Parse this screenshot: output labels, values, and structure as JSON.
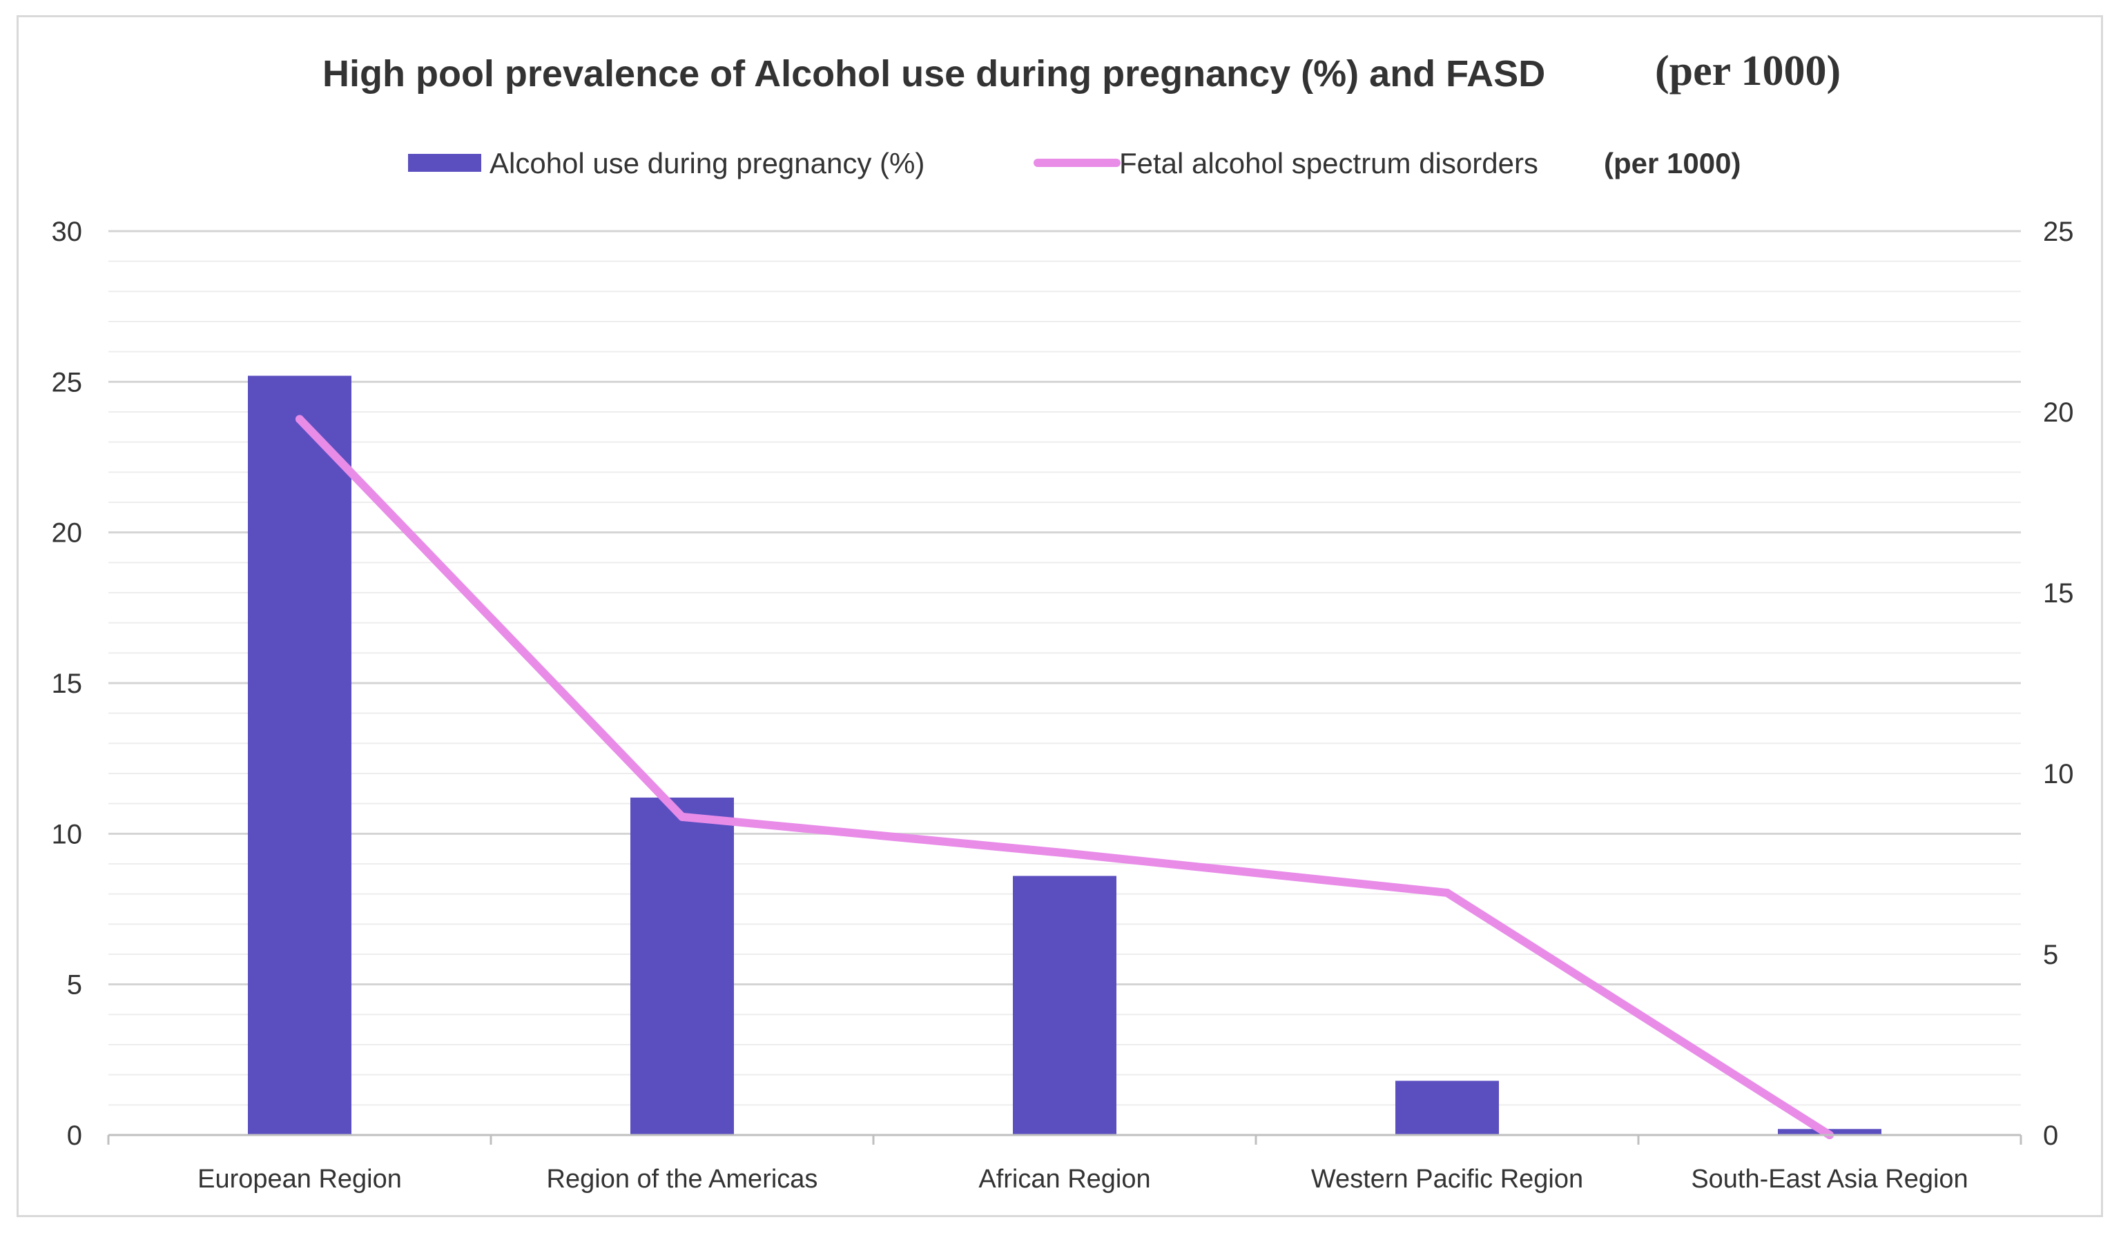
{
  "chart_data": {
    "type": "bar",
    "title": "High pool prevalence of Alcohol use during pregnancy (%) and FASD",
    "title_suffix": "(per 1000)",
    "categories": [
      "European Region",
      "Region of the Americas",
      "African Region",
      "Western Pacific Region",
      "South-East Asia Region"
    ],
    "series": [
      {
        "name": "Alcohol use during pregnancy (%)",
        "type": "bar",
        "axis": "left",
        "color": "#5b4fc0",
        "values": [
          25.2,
          11.2,
          8.6,
          1.8,
          0.2
        ]
      },
      {
        "name": "Fetal alcohol spectrum disorders",
        "name_suffix": "(per 1000)",
        "type": "line",
        "axis": "right",
        "color": "#e88ce8",
        "values": [
          19.8,
          8.8,
          7.8,
          6.7,
          0.0
        ]
      }
    ],
    "y_left": {
      "min": 0,
      "max": 30,
      "ticks": [
        0,
        5,
        10,
        15,
        20,
        25,
        30
      ]
    },
    "y_right": {
      "min": 0,
      "max": 25,
      "ticks": [
        0,
        5,
        10,
        15,
        20,
        25
      ]
    },
    "grid": true,
    "legend_position": "top-center",
    "xlabel": "",
    "ylabel": ""
  }
}
